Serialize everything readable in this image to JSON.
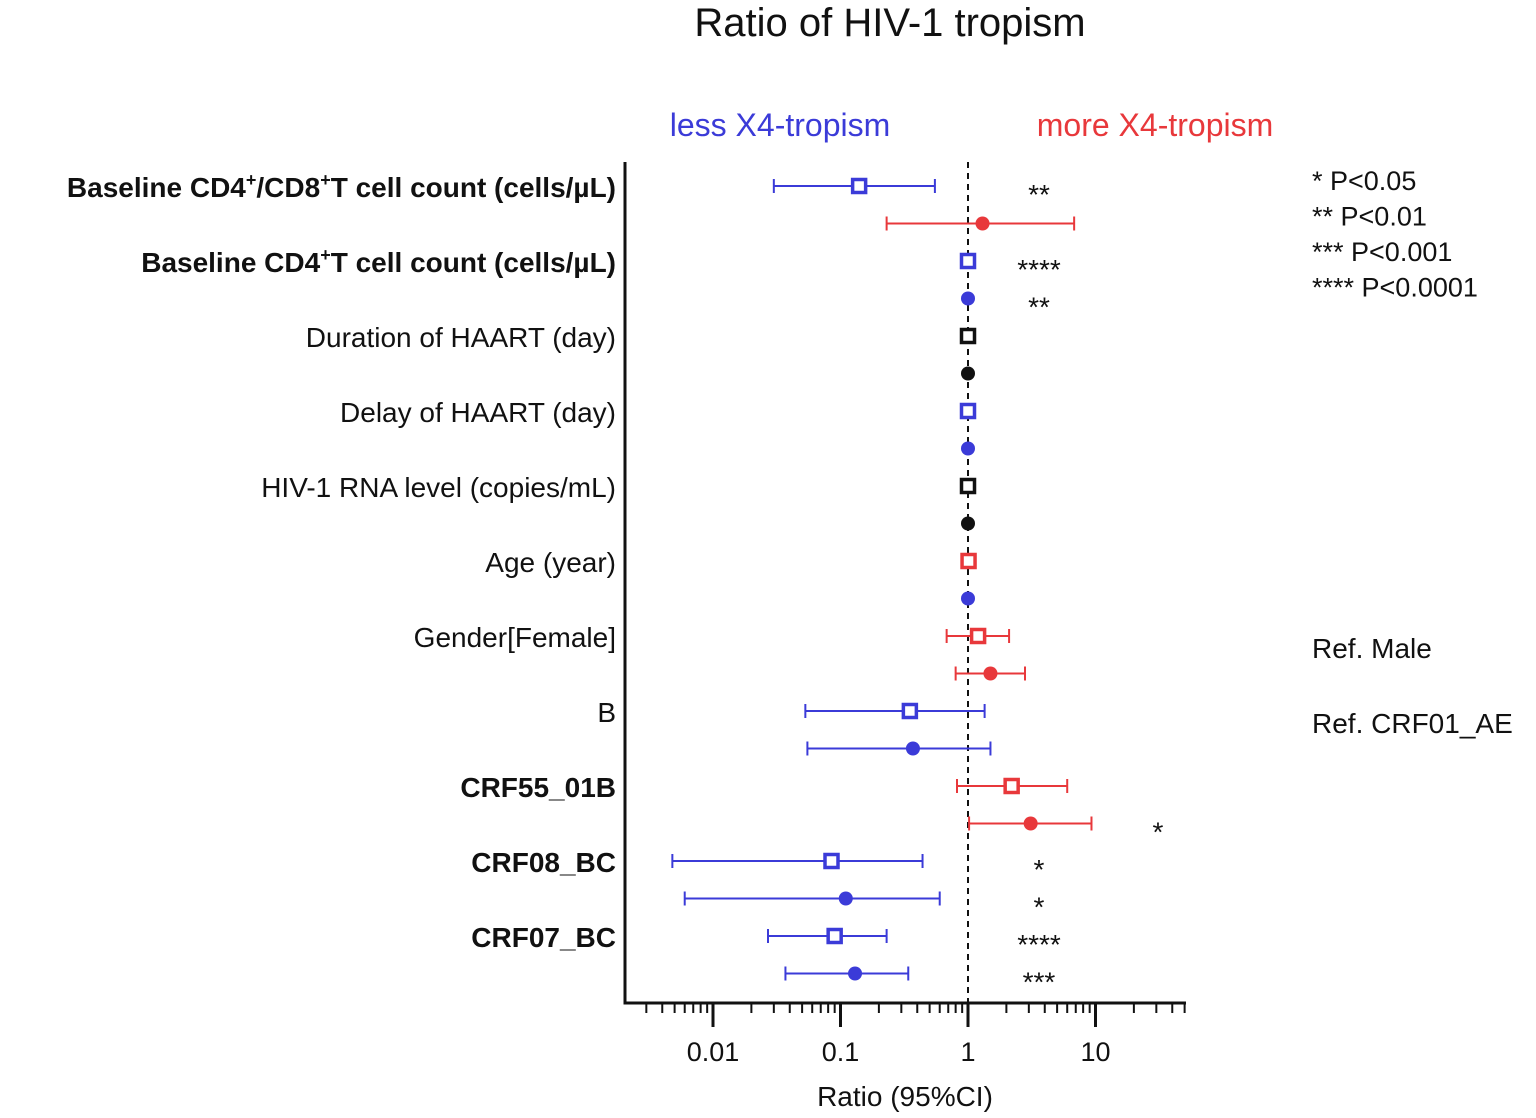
{
  "chart_data": {
    "type": "forest",
    "title": "Ratio of HIV-1 tropism",
    "xlabel": "Ratio (95%CI)",
    "x_scale": "log",
    "xlim": [
      0.002,
      60
    ],
    "x_ticks": [
      {
        "value": 0.01,
        "label": "0.01"
      },
      {
        "value": 0.1,
        "label": "0.1"
      },
      {
        "value": 1,
        "label": "1"
      },
      {
        "value": 10,
        "label": "10"
      }
    ],
    "reference_line": 1,
    "direction_labels": {
      "left": {
        "text": "less X4-tropism",
        "color": "#3b3bd8"
      },
      "right": {
        "text": "more X4-tropism",
        "color": "#e8383b"
      }
    },
    "colors": {
      "blue": "#3b3bd8",
      "red": "#e8383b",
      "black": "#111111"
    },
    "series_markers": {
      "univariate": "open-square",
      "multivariate": "filled-circle"
    },
    "rows": [
      {
        "label": "Baseline CD4",
        "bold": true,
        "super_label": true,
        "label_parts": [
          "Baseline CD4",
          "+",
          "/CD8",
          "+",
          "T cell count (cells/µL)"
        ],
        "points": [
          {
            "marker": "square",
            "color": "blue",
            "est": 0.14,
            "lo": 0.03,
            "hi": 0.55,
            "sig": "**"
          },
          {
            "marker": "circle",
            "color": "red",
            "est": 1.3,
            "lo": 0.23,
            "hi": 6.8,
            "sig": ""
          }
        ]
      },
      {
        "label": "Baseline CD4",
        "bold": true,
        "super_label": true,
        "label_parts": [
          "Baseline CD4",
          "+",
          "T cell count (cells/µL)"
        ],
        "points": [
          {
            "marker": "square",
            "color": "blue",
            "est": 1.0,
            "lo": 1.0,
            "hi": 1.0,
            "sig": "****"
          },
          {
            "marker": "circle",
            "color": "blue",
            "est": 1.0,
            "lo": 1.0,
            "hi": 1.0,
            "sig": "**"
          }
        ]
      },
      {
        "label": "Duration of HAART (day)",
        "bold": false,
        "points": [
          {
            "marker": "square",
            "color": "black",
            "est": 1.0,
            "lo": 1.0,
            "hi": 1.0,
            "sig": ""
          },
          {
            "marker": "circle",
            "color": "black",
            "est": 1.0,
            "lo": 1.0,
            "hi": 1.0,
            "sig": ""
          }
        ]
      },
      {
        "label": "Delay of HAART (day)",
        "bold": false,
        "points": [
          {
            "marker": "square",
            "color": "blue",
            "est": 1.0,
            "lo": 1.0,
            "hi": 1.0,
            "sig": ""
          },
          {
            "marker": "circle",
            "color": "blue",
            "est": 1.0,
            "lo": 1.0,
            "hi": 1.0,
            "sig": ""
          }
        ]
      },
      {
        "label": "HIV-1 RNA level (copies/mL)",
        "bold": false,
        "points": [
          {
            "marker": "square",
            "color": "black",
            "est": 1.0,
            "lo": 1.0,
            "hi": 1.0,
            "sig": ""
          },
          {
            "marker": "circle",
            "color": "black",
            "est": 1.0,
            "lo": 1.0,
            "hi": 1.0,
            "sig": ""
          }
        ]
      },
      {
        "label": "Age (year)",
        "bold": false,
        "points": [
          {
            "marker": "square",
            "color": "red",
            "est": 1.01,
            "lo": 1.0,
            "hi": 1.02,
            "sig": ""
          },
          {
            "marker": "circle",
            "color": "blue",
            "est": 1.0,
            "lo": 1.0,
            "hi": 1.0,
            "sig": ""
          }
        ]
      },
      {
        "label": "Gender[Female]",
        "bold": false,
        "note": "Ref. Male",
        "points": [
          {
            "marker": "square",
            "color": "red",
            "est": 1.2,
            "lo": 0.68,
            "hi": 2.1,
            "sig": ""
          },
          {
            "marker": "circle",
            "color": "red",
            "est": 1.5,
            "lo": 0.8,
            "hi": 2.8,
            "sig": ""
          }
        ]
      },
      {
        "label": "B",
        "bold": false,
        "note": "Ref. CRF01_AE",
        "points": [
          {
            "marker": "square",
            "color": "blue",
            "est": 0.35,
            "lo": 0.053,
            "hi": 1.35,
            "sig": ""
          },
          {
            "marker": "circle",
            "color": "blue",
            "est": 0.37,
            "lo": 0.055,
            "hi": 1.5,
            "sig": ""
          }
        ]
      },
      {
        "label": "CRF55_01B",
        "bold": true,
        "points": [
          {
            "marker": "square",
            "color": "red",
            "est": 2.2,
            "lo": 0.82,
            "hi": 6.0,
            "sig": ""
          },
          {
            "marker": "circle",
            "color": "red",
            "est": 3.1,
            "lo": 1.02,
            "hi": 9.3,
            "sig": "*"
          }
        ]
      },
      {
        "label": "CRF08_BC",
        "bold": true,
        "points": [
          {
            "marker": "square",
            "color": "blue",
            "est": 0.085,
            "lo": 0.0048,
            "hi": 0.44,
            "sig": "*"
          },
          {
            "marker": "circle",
            "color": "blue",
            "est": 0.11,
            "lo": 0.006,
            "hi": 0.6,
            "sig": "*"
          }
        ]
      },
      {
        "label": "CRF07_BC",
        "bold": true,
        "points": [
          {
            "marker": "square",
            "color": "blue",
            "est": 0.09,
            "lo": 0.027,
            "hi": 0.23,
            "sig": "****"
          },
          {
            "marker": "circle",
            "color": "blue",
            "est": 0.13,
            "lo": 0.037,
            "hi": 0.34,
            "sig": "***"
          }
        ]
      }
    ],
    "significance_legend": [
      {
        "stars": "*",
        "text": "P<0.05"
      },
      {
        "stars": "**",
        "text": "P<0.01"
      },
      {
        "stars": "***",
        "text": "P<0.001"
      },
      {
        "stars": "****",
        "text": "P<0.0001"
      }
    ]
  }
}
